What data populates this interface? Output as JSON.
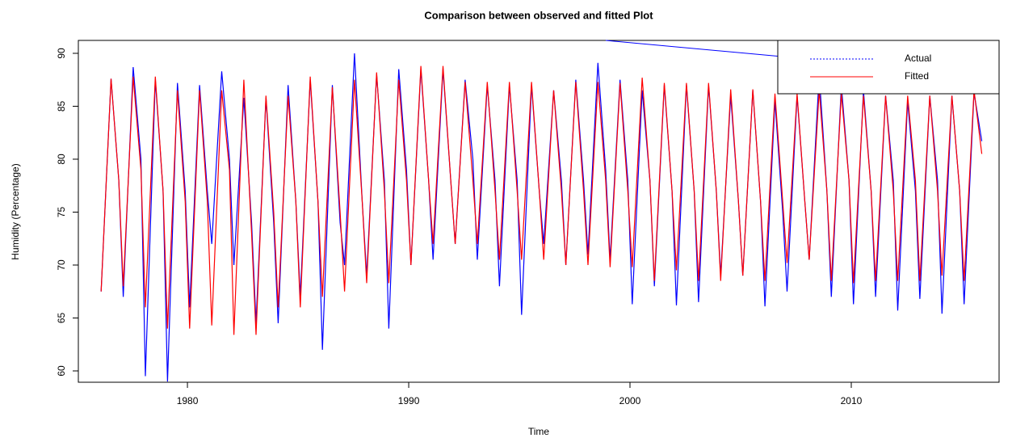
{
  "chart_data": {
    "type": "line",
    "title": "Comparison between observed and fitted Plot",
    "x_label": "Time",
    "y_label": "Humidity (Percentage)",
    "x": [
      1976.1,
      1976.55,
      1976.9,
      1977.1,
      1977.55,
      1977.9,
      1978.1,
      1978.55,
      1978.9,
      1979.1,
      1979.55,
      1979.9,
      1980.1,
      1980.55,
      1980.9,
      1981.1,
      1981.55,
      1981.9,
      1982.1,
      1982.55,
      1982.9,
      1983.1,
      1983.55,
      1983.9,
      1984.1,
      1984.55,
      1984.9,
      1985.1,
      1985.55,
      1985.9,
      1986.1,
      1986.55,
      1986.9,
      1987.1,
      1987.55,
      1987.9,
      1988.1,
      1988.55,
      1988.9,
      1989.1,
      1989.55,
      1989.9,
      1990.1,
      1990.55,
      1990.9,
      1991.1,
      1991.55,
      1991.9,
      1992.1,
      1992.55,
      1992.9,
      1993.1,
      1993.55,
      1993.9,
      1994.1,
      1994.55,
      1994.9,
      1995.1,
      1995.55,
      1995.9,
      1996.1,
      1996.55,
      1996.9,
      1997.1,
      1997.55,
      1997.9,
      1998.1,
      1998.55,
      1998.9,
      1999.1,
      1999.55,
      1999.9,
      2000.1,
      2000.55,
      2000.9,
      2001.1,
      2001.55,
      2001.9,
      2002.1,
      2002.55,
      2002.9,
      2003.1,
      2003.55,
      2003.9,
      2004.1,
      2004.55,
      2004.9,
      2005.1,
      2005.55,
      2005.9,
      2006.1,
      2006.55,
      2006.9,
      2007.1,
      2007.55,
      2007.9,
      2008.1,
      2008.55,
      2008.9,
      2009.1,
      2009.55,
      2009.9,
      2010.1,
      2010.55,
      2010.9,
      2011.1,
      2011.55,
      2011.9,
      2012.1,
      2012.55,
      2012.9,
      2013.1,
      2013.55,
      2013.9,
      2014.1,
      2014.55,
      2014.9,
      2015.1,
      2015.55,
      2015.9
    ],
    "series": [
      {
        "name": "Actual",
        "color": "#0000ff",
        "values": [
          67.5,
          87.6,
          78,
          67,
          88.7,
          80,
          59.5,
          87.5,
          77,
          59,
          87.2,
          77,
          66,
          87,
          77,
          72,
          88.3,
          80,
          70,
          85.8,
          74,
          64.5,
          85.8,
          74,
          64.5,
          87,
          76,
          67,
          87.5,
          76,
          62,
          87,
          74,
          70,
          90,
          76,
          69,
          88,
          78,
          64,
          88.5,
          79,
          70,
          88.5,
          78,
          70.5,
          88.5,
          78,
          72,
          87.5,
          80,
          70.5,
          87,
          78,
          68,
          87,
          78,
          65.3,
          87,
          77,
          72,
          86.5,
          78,
          70,
          87.5,
          78,
          71,
          89.1,
          79,
          70.5,
          87.5,
          78,
          66.3,
          86.5,
          78,
          68,
          87,
          77,
          66.2,
          87,
          77,
          66.5,
          87,
          77,
          69,
          86,
          76,
          69,
          86.5,
          76,
          66.1,
          85.5,
          75,
          67.5,
          86,
          76,
          70.5,
          88,
          77,
          67,
          87,
          78,
          66.3,
          86.5,
          77,
          67,
          86,
          78,
          65.7,
          85.5,
          77,
          66.8,
          86,
          78,
          65.4,
          86,
          77,
          66.3,
          86.3,
          81.7
        ]
      },
      {
        "name": "Fitted",
        "color": "#ff0000",
        "values": [
          67.5,
          87.6,
          78,
          68,
          87.8,
          79,
          66,
          87.8,
          77,
          64,
          86.5,
          76,
          64,
          86.5,
          76,
          64.3,
          86.5,
          79,
          63.4,
          87.5,
          73,
          63.4,
          86,
          75,
          66,
          86,
          76,
          66,
          87.8,
          76,
          67,
          86.8,
          75,
          67.5,
          87.5,
          76,
          68.3,
          88.2,
          77,
          68.3,
          87.5,
          78,
          70,
          88.8,
          78,
          72,
          88.8,
          78,
          72,
          87.3,
          78,
          72,
          87.3,
          77,
          70.5,
          87.3,
          77,
          70.5,
          87.3,
          77,
          70.5,
          86.5,
          77,
          70,
          87.3,
          77,
          70,
          87.3,
          78,
          69.8,
          87.2,
          77,
          69.8,
          87.7,
          78,
          68.5,
          87.2,
          77,
          69.5,
          87.2,
          77,
          68.5,
          87.2,
          77,
          68.5,
          86.6,
          76,
          69,
          86.6,
          76,
          68.5,
          86.2,
          76,
          70.2,
          86.2,
          76,
          70.5,
          86.5,
          77,
          68.5,
          86.2,
          78,
          68.3,
          86,
          77,
          68.5,
          86,
          77,
          68.5,
          86,
          78,
          68.5,
          86,
          77,
          69,
          86,
          77,
          68.5,
          86.5,
          80.5
        ]
      }
    ],
    "xlim": [
      1975.07,
      2016.68
    ],
    "xticks": [
      1980,
      1990,
      2000,
      2010
    ],
    "ylim": [
      58.93,
      91.22
    ],
    "yticks": [
      60,
      65,
      70,
      75,
      80,
      85,
      90
    ],
    "legend": "top-right"
  }
}
